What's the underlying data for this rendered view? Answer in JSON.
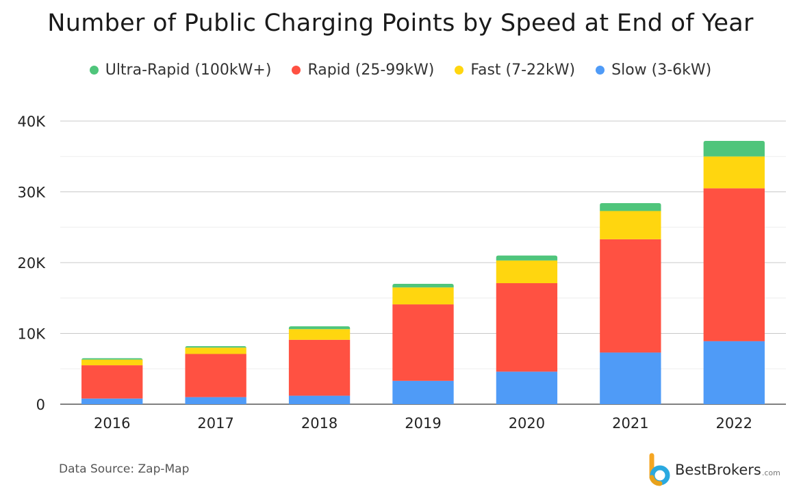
{
  "chart_data": {
    "type": "bar",
    "stacked": true,
    "title": "Number of Public Charging Points by Speed at End of Year",
    "categories": [
      "2016",
      "2017",
      "2018",
      "2019",
      "2020",
      "2021",
      "2022"
    ],
    "series": [
      {
        "name": "Slow (3-6kW)",
        "color": "#4f9bf7",
        "values": [
          800,
          1000,
          1200,
          3300,
          4600,
          7300,
          8900
        ]
      },
      {
        "name": "Rapid (25-99kW)",
        "color": "#ff5142",
        "values": [
          4700,
          6100,
          7900,
          10800,
          12500,
          16000,
          21600
        ]
      },
      {
        "name": "Fast (7-22kW)",
        "color": "#ffd60f",
        "values": [
          800,
          900,
          1500,
          2400,
          3200,
          4000,
          4500
        ]
      },
      {
        "name": "Ultra-Rapid (100kW+)",
        "color": "#4fc57b",
        "values": [
          200,
          200,
          400,
          500,
          700,
          1100,
          2200
        ]
      }
    ],
    "legend_order": [
      "Ultra-Rapid (100kW+)",
      "Rapid (25-99kW)",
      "Fast (7-22kW)",
      "Slow (3-6kW)"
    ],
    "legend_position": "top",
    "ylim": [
      0,
      40000
    ],
    "yticks": [
      0,
      10000,
      20000,
      30000,
      40000
    ],
    "ytick_labels": [
      "0",
      "10K",
      "20K",
      "30K",
      "40K"
    ],
    "grid": true,
    "xlabel": "",
    "ylabel": ""
  },
  "source_text": "Data Source: Zap-Map",
  "brand": {
    "name": "BestBrokers",
    "suffix": ".com",
    "icon": "bestbrokers-logo-icon"
  }
}
